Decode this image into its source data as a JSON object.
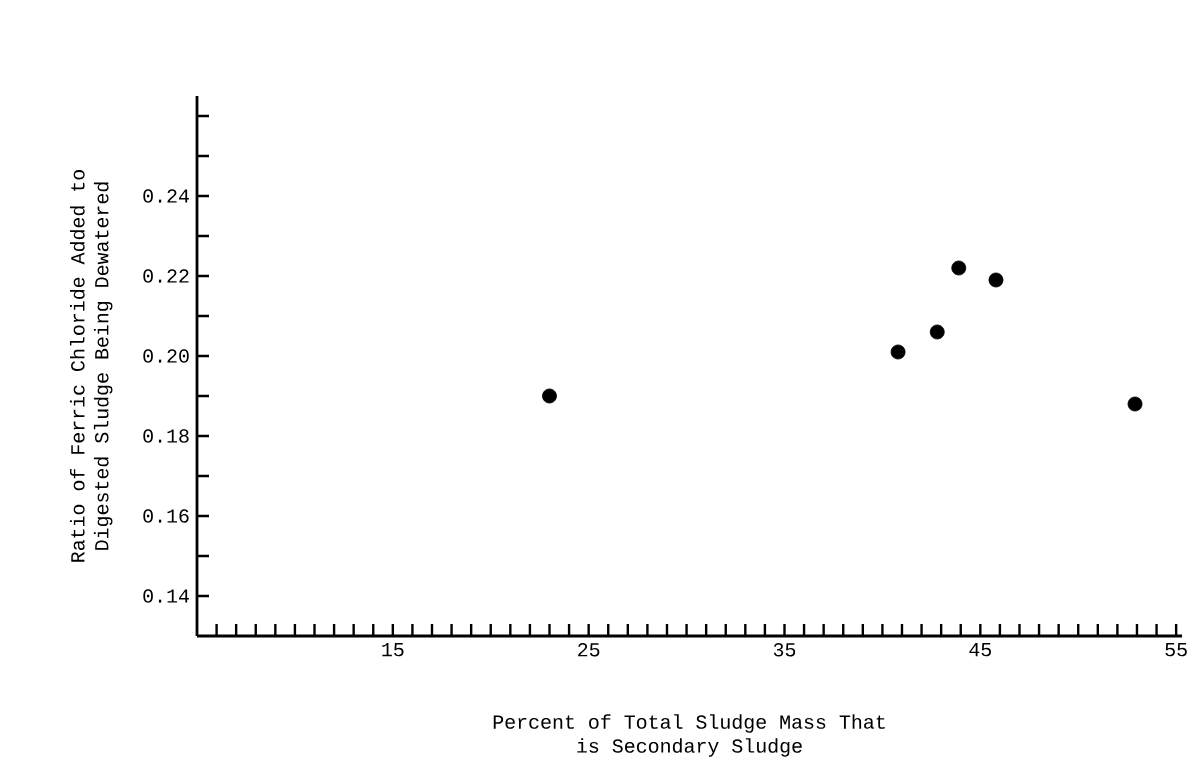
{
  "chart_data": {
    "type": "scatter",
    "xlabel": "Percent of Total Sludge Mass That\nis Secondary Sludge",
    "ylabel": "Ratio of Ferric Chloride Added to\nDigested Sludge Being Dewatered",
    "x": [
      23,
      40.8,
      42.8,
      43.9,
      45.8,
      52.9
    ],
    "values": [
      0.19,
      0.201,
      0.206,
      0.222,
      0.219,
      0.188
    ],
    "color": "#000000",
    "xlim": [
      5,
      55.3
    ],
    "ylim": [
      0.13,
      0.265
    ],
    "xticks": [
      {
        "value": 6,
        "label": null
      },
      {
        "value": 7,
        "label": null
      },
      {
        "value": 8,
        "label": null
      },
      {
        "value": 9,
        "label": null
      },
      {
        "value": 10,
        "label": null
      },
      {
        "value": 11,
        "label": null
      },
      {
        "value": 12,
        "label": null
      },
      {
        "value": 13,
        "label": null
      },
      {
        "value": 14,
        "label": null
      },
      15,
      {
        "value": 16,
        "label": null
      },
      {
        "value": 17,
        "label": null
      },
      {
        "value": 18,
        "label": null
      },
      {
        "value": 19,
        "label": null
      },
      {
        "value": 20,
        "label": null
      },
      {
        "value": 21,
        "label": null
      },
      {
        "value": 22,
        "label": null
      },
      {
        "value": 23,
        "label": null
      },
      {
        "value": 24,
        "label": null
      },
      25,
      {
        "value": 26,
        "label": null
      },
      {
        "value": 27,
        "label": null
      },
      {
        "value": 28,
        "label": null
      },
      {
        "value": 29,
        "label": null
      },
      {
        "value": 30,
        "label": null
      },
      {
        "value": 31,
        "label": null
      },
      {
        "value": 32,
        "label": null
      },
      {
        "value": 33,
        "label": null
      },
      {
        "value": 34,
        "label": null
      },
      35,
      {
        "value": 36,
        "label": null
      },
      {
        "value": 37,
        "label": null
      },
      {
        "value": 38,
        "label": null
      },
      {
        "value": 39,
        "label": null
      },
      {
        "value": 40,
        "label": null
      },
      {
        "value": 41,
        "label": null
      },
      {
        "value": 42,
        "label": null
      },
      {
        "value": 43,
        "label": null
      },
      {
        "value": 44,
        "label": null
      },
      45,
      {
        "value": 46,
        "label": null
      },
      {
        "value": 47,
        "label": null
      },
      {
        "value": 48,
        "label": null
      },
      {
        "value": 49,
        "label": null
      },
      {
        "value": 50,
        "label": null
      },
      {
        "value": 51,
        "label": null
      },
      {
        "value": 52,
        "label": null
      },
      {
        "value": 53,
        "label": null
      },
      {
        "value": 54,
        "label": null
      },
      55
    ],
    "yticks": [
      {
        "value": 0.14,
        "label": "0.14"
      },
      {
        "value": 0.15,
        "label": null
      },
      {
        "value": 0.16,
        "label": "0.16"
      },
      {
        "value": 0.17,
        "label": null
      },
      {
        "value": 0.18,
        "label": "0.18"
      },
      {
        "value": 0.19,
        "label": null
      },
      {
        "value": 0.2,
        "label": "0.20"
      },
      {
        "value": 0.21,
        "label": null
      },
      {
        "value": 0.22,
        "label": "0.22"
      },
      {
        "value": 0.23,
        "label": null
      },
      {
        "value": 0.24,
        "label": "0.24"
      },
      {
        "value": 0.25,
        "label": null
      },
      {
        "value": 0.26,
        "label": null
      }
    ],
    "grid": false
  }
}
